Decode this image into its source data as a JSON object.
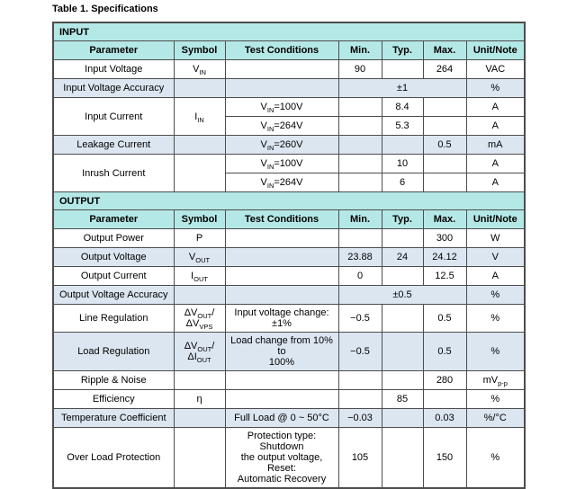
{
  "title": "Table 1. Specifications",
  "colors": {
    "section_header_bg": "#b4e8e6",
    "alt_row_bg": "#dce6f1",
    "border": "#4d4d4d",
    "text": "#000000",
    "row_bg": "#ffffff"
  },
  "columns": [
    "Parameter",
    "Symbol",
    "Test Conditions",
    "Min.",
    "Typ.",
    "Max.",
    "Unit/Note"
  ],
  "sections": [
    {
      "label": "INPUT",
      "rows": [
        {
          "bg": "white",
          "cells": [
            {
              "t": "Input Voltage"
            },
            {
              "t": "V_{IN}"
            },
            {
              "t": ""
            },
            {
              "t": "90"
            },
            {
              "t": ""
            },
            {
              "t": "264"
            },
            {
              "t": "VAC"
            }
          ]
        },
        {
          "bg": "blue",
          "cells": [
            {
              "t": "Input Voltage Accuracy"
            },
            {
              "t": ""
            },
            {
              "t": ""
            },
            {
              "t": "±1",
              "cs": 3
            },
            {
              "t": "%"
            }
          ]
        },
        {
          "bg": "white",
          "cells": [
            {
              "t": "Input Current",
              "rs": 2
            },
            {
              "t": "I_{IN}",
              "rs": 2
            },
            {
              "t": "V_{IN}=100V"
            },
            {
              "t": ""
            },
            {
              "t": "8.4"
            },
            {
              "t": ""
            },
            {
              "t": "A"
            }
          ]
        },
        {
          "bg": "white",
          "cells": [
            {
              "t": "V_{IN}=264V"
            },
            {
              "t": ""
            },
            {
              "t": "5.3"
            },
            {
              "t": ""
            },
            {
              "t": "A"
            }
          ]
        },
        {
          "bg": "blue",
          "cells": [
            {
              "t": "Leakage Current"
            },
            {
              "t": ""
            },
            {
              "t": "V_{IN}=260V"
            },
            {
              "t": ""
            },
            {
              "t": ""
            },
            {
              "t": "0.5"
            },
            {
              "t": "mA"
            }
          ]
        },
        {
          "bg": "white",
          "cells": [
            {
              "t": "Inrush Current",
              "rs": 2
            },
            {
              "t": "",
              "rs": 2
            },
            {
              "t": "V_{IN}=100V"
            },
            {
              "t": ""
            },
            {
              "t": "10"
            },
            {
              "t": ""
            },
            {
              "t": "A"
            }
          ]
        },
        {
          "bg": "white",
          "cells": [
            {
              "t": "V_{IN}=264V"
            },
            {
              "t": ""
            },
            {
              "t": "6"
            },
            {
              "t": ""
            },
            {
              "t": "A"
            }
          ]
        }
      ]
    },
    {
      "label": "OUTPUT",
      "rows": [
        {
          "bg": "white",
          "cells": [
            {
              "t": "Output Power"
            },
            {
              "t": "P"
            },
            {
              "t": ""
            },
            {
              "t": ""
            },
            {
              "t": ""
            },
            {
              "t": "300"
            },
            {
              "t": "W"
            }
          ]
        },
        {
          "bg": "blue",
          "cells": [
            {
              "t": "Output Voltage"
            },
            {
              "t": "V_{OUT}"
            },
            {
              "t": ""
            },
            {
              "t": "23.88"
            },
            {
              "t": "24"
            },
            {
              "t": "24.12"
            },
            {
              "t": "V"
            }
          ]
        },
        {
          "bg": "white",
          "cells": [
            {
              "t": "Output Current"
            },
            {
              "t": "I_{OUT}"
            },
            {
              "t": ""
            },
            {
              "t": "0"
            },
            {
              "t": ""
            },
            {
              "t": "12.5"
            },
            {
              "t": "A"
            }
          ]
        },
        {
          "bg": "blue",
          "cells": [
            {
              "t": "Output Voltage Accuracy"
            },
            {
              "t": ""
            },
            {
              "t": ""
            },
            {
              "t": "±0.5",
              "cs": 3
            },
            {
              "t": "%"
            }
          ]
        },
        {
          "bg": "white",
          "cells": [
            {
              "t": "Line Regulation"
            },
            {
              "t": "ΔV_{OUT}/ΔV_{VPS}"
            },
            {
              "t": "Input voltage change:\n±1%"
            },
            {
              "t": "−0.5"
            },
            {
              "t": ""
            },
            {
              "t": "0.5"
            },
            {
              "t": "%"
            }
          ]
        },
        {
          "bg": "blue",
          "cells": [
            {
              "t": "Load Regulation"
            },
            {
              "t": "ΔV_{OUT}/ΔI_{OUT}"
            },
            {
              "t": "Load change from 10% to\n100%"
            },
            {
              "t": "−0.5"
            },
            {
              "t": ""
            },
            {
              "t": "0.5"
            },
            {
              "t": "%"
            }
          ]
        },
        {
          "bg": "white",
          "cells": [
            {
              "t": "Ripple & Noise"
            },
            {
              "t": ""
            },
            {
              "t": ""
            },
            {
              "t": ""
            },
            {
              "t": ""
            },
            {
              "t": "280"
            },
            {
              "t": "mV_{p-p}"
            }
          ]
        },
        {
          "bg": "white",
          "cells": [
            {
              "t": "Efficiency"
            },
            {
              "t": "η"
            },
            {
              "t": ""
            },
            {
              "t": ""
            },
            {
              "t": "85"
            },
            {
              "t": ""
            },
            {
              "t": "%"
            }
          ]
        },
        {
          "bg": "blue",
          "cells": [
            {
              "t": "Temperature Coefficient"
            },
            {
              "t": ""
            },
            {
              "t": "Full Load @ 0 ~ 50°C"
            },
            {
              "t": "−0.03"
            },
            {
              "t": ""
            },
            {
              "t": "0.03"
            },
            {
              "t": "%/°C"
            }
          ]
        },
        {
          "bg": "white",
          "cells": [
            {
              "t": "Over Load Protection"
            },
            {
              "t": ""
            },
            {
              "t": "Protection type: Shutdown\nthe output voltage, Reset:\nAutomatic Recovery"
            },
            {
              "t": "105"
            },
            {
              "t": ""
            },
            {
              "t": "150"
            },
            {
              "t": "%"
            }
          ]
        }
      ]
    }
  ]
}
